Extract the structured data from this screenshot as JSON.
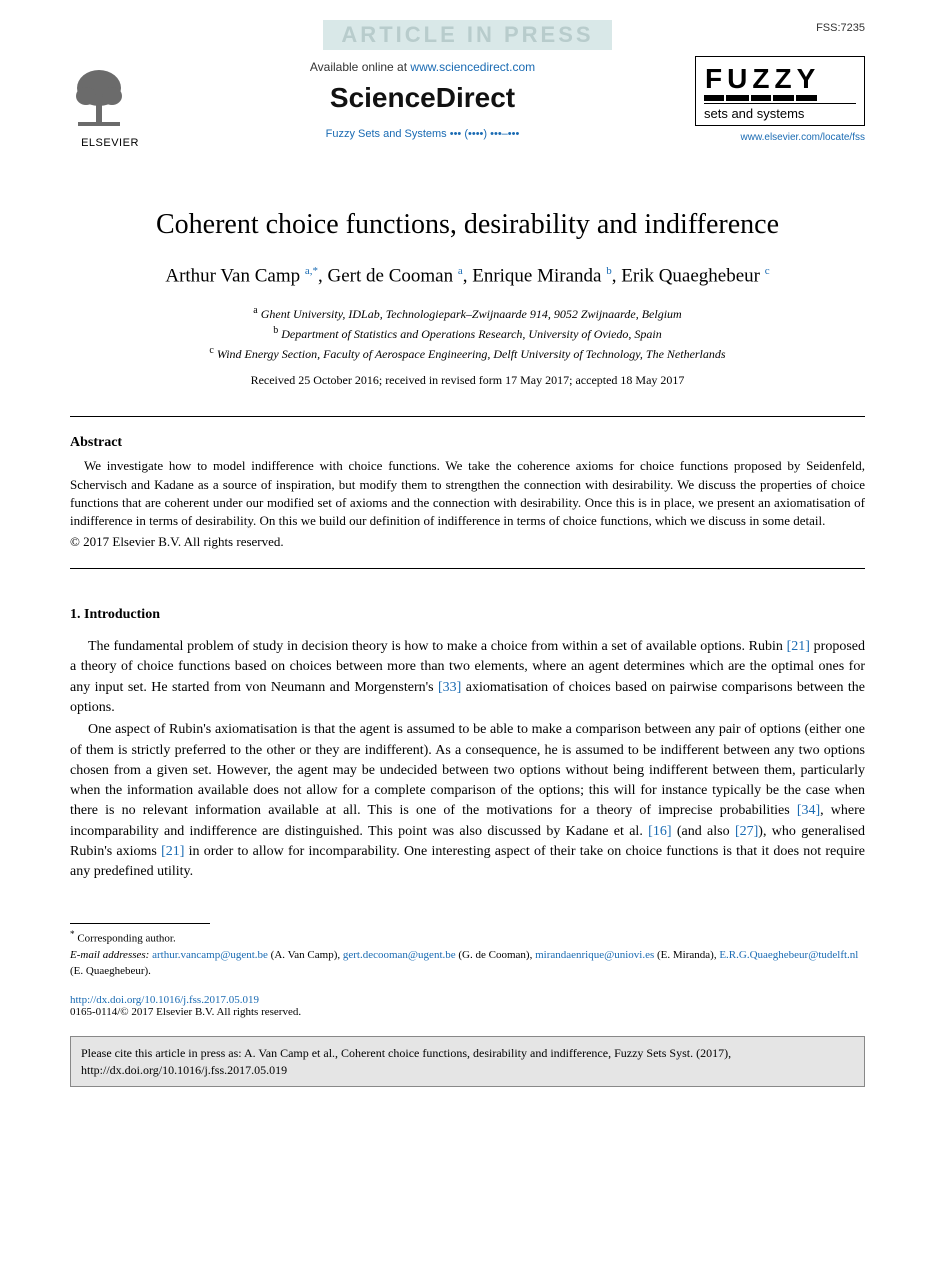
{
  "banner": {
    "text": "ARTICLE IN PRESS",
    "code": "FSS:7235"
  },
  "header": {
    "elsevier_label": "ELSEVIER",
    "available_prefix": "Available online at ",
    "available_url": "www.sciencedirect.com",
    "sd_logo": "ScienceDirect",
    "journal_ref": "Fuzzy Sets and Systems ••• (••••) •••–•••",
    "fuzzy_title_chars": [
      "F",
      "U",
      "Z",
      "Z",
      "Y"
    ],
    "fuzzy_sub": "sets and systems",
    "fuzzy_link": "www.elsevier.com/locate/fss"
  },
  "title": "Coherent choice functions, desirability and indifference",
  "authors_html": "Arthur Van Camp <sup>a,*</sup>, Gert de Cooman <sup>a</sup>, Enrique Miranda <sup>b</sup>, Erik Quaeghebeur <sup>c</sup>",
  "affiliations": [
    {
      "sup": "a",
      "text": "Ghent University, IDLab, Technologiepark–Zwijnaarde 914, 9052 Zwijnaarde, Belgium"
    },
    {
      "sup": "b",
      "text": "Department of Statistics and Operations Research, University of Oviedo, Spain"
    },
    {
      "sup": "c",
      "text": "Wind Energy Section, Faculty of Aerospace Engineering, Delft University of Technology, The Netherlands"
    }
  ],
  "dates": "Received 25 October 2016; received in revised form 17 May 2017; accepted 18 May 2017",
  "abstract": {
    "heading": "Abstract",
    "body": "We investigate how to model indifference with choice functions. We take the coherence axioms for choice functions proposed by Seidenfeld, Schervisch and Kadane as a source of inspiration, but modify them to strengthen the connection with desirability. We discuss the properties of choice functions that are coherent under our modified set of axioms and the connection with desirability. Once this is in place, we present an axiomatisation of indifference in terms of desirability. On this we build our definition of indifference in terms of choice functions, which we discuss in some detail.",
    "copyright": "© 2017 Elsevier B.V. All rights reserved."
  },
  "section1": {
    "heading": "1. Introduction",
    "p1_pre": "The fundamental problem of study in decision theory is how to make a choice from within a set of available options. Rubin ",
    "ref21a": "[21]",
    "p1_mid": " proposed a theory of choice functions based on choices between more than two elements, where an agent determines which are the optimal ones for any input set. He started from von Neumann and Morgenstern's ",
    "ref33": "[33]",
    "p1_post": " axiomatisation of choices based on pairwise comparisons between the options.",
    "p2_pre": "One aspect of Rubin's axiomatisation is that the agent is assumed to be able to make a comparison between any pair of options (either one of them is strictly preferred to the other or they are indifferent). As a consequence, he is assumed to be indifferent between any two options chosen from a given set. However, the agent may be undecided between two options without being indifferent between them, particularly when the information available does not allow for a complete comparison of the options; this will for instance typically be the case when there is no relevant information available at all. This is one of the motivations for a theory of imprecise probabilities ",
    "ref34": "[34]",
    "p2_mid1": ", where incomparability and indifference are distinguished. This point was also discussed by Kadane et al. ",
    "ref16": "[16]",
    "p2_mid2": " (and also ",
    "ref27": "[27]",
    "p2_mid3": "), who generalised Rubin's axioms ",
    "ref21b": "[21]",
    "p2_post": " in order to allow for incomparability. One interesting aspect of their take on choice functions is that it does not require any predefined utility."
  },
  "footnotes": {
    "corr": "Corresponding author.",
    "email_label": "E-mail addresses:",
    "emails": [
      {
        "addr": "arthur.vancamp@ugent.be",
        "who": "(A. Van Camp)"
      },
      {
        "addr": "gert.decooman@ugent.be",
        "who": "(G. de Cooman)"
      },
      {
        "addr": "mirandaenrique@uniovi.es",
        "who": "(E. Miranda)"
      },
      {
        "addr": "E.R.G.Quaeghebeur@tudelft.nl",
        "who": "(E. Quaeghebeur)"
      }
    ]
  },
  "doi": {
    "url": "http://dx.doi.org/10.1016/j.fss.2017.05.019",
    "line2": "0165-0114/© 2017 Elsevier B.V. All rights reserved."
  },
  "citebox": "Please cite this article in press as: A. Van Camp et al., Coherent choice functions, desirability and indifference, Fuzzy Sets Syst. (2017), http://dx.doi.org/10.1016/j.fss.2017.05.019",
  "colors": {
    "link": "#1a6bb3",
    "banner_bg": "#d9e8e8",
    "citebox_bg": "#e5e5e5"
  }
}
